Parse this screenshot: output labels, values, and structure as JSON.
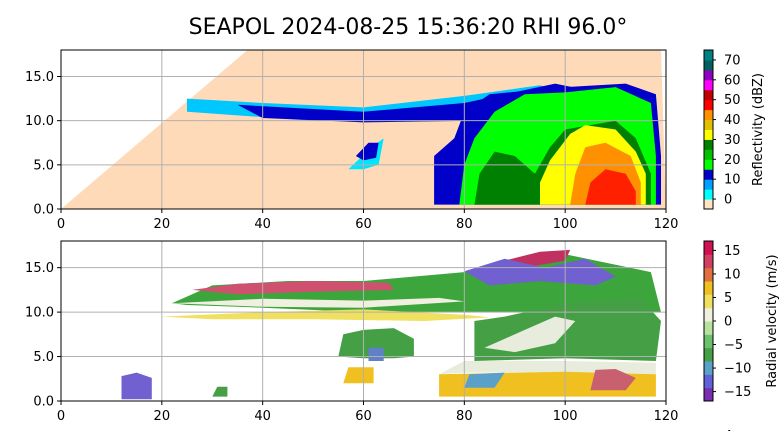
{
  "title": "SEAPOL 2024-08-25 15:36:20 RHI 96.0°",
  "chart_data": [
    {
      "type": "heatmap",
      "field": "reflectivity",
      "xlim": [
        0,
        120
      ],
      "ylim": [
        0,
        18
      ],
      "x_ticks": [
        "0",
        "20",
        "40",
        "60",
        "80",
        "100",
        "120"
      ],
      "y_ticks": [
        "0.0",
        "5.0",
        "10.0",
        "15.0"
      ],
      "grid": true,
      "colorbar": {
        "label": "Reflectivity (dBZ)",
        "range": [
          -5,
          75
        ],
        "ticks": [
          "0",
          "10",
          "20",
          "30",
          "40",
          "50",
          "60",
          "70"
        ],
        "colors": [
          "#ffe4c4",
          "#00ffff",
          "#00a0ff",
          "#0000c8",
          "#00ff00",
          "#00c000",
          "#008000",
          "#ffff00",
          "#e0c000",
          "#ff9000",
          "#ff0000",
          "#c00000",
          "#ff00ff",
          "#9000c0",
          "#006060",
          "#008080"
        ]
      },
      "regions": [
        {
          "name": "blocked-sector",
          "color": "#ffdab9",
          "poly": [
            [
              0,
              0
            ],
            [
              37,
              18
            ],
            [
              119,
              18
            ],
            [
              120,
              0
            ]
          ]
        },
        {
          "name": "anvil-stratiform",
          "color": "#00c8ff",
          "poly": [
            [
              25,
              12.5
            ],
            [
              40,
              12
            ],
            [
              60,
              11.5
            ],
            [
              80,
              12.8
            ],
            [
              95,
              14
            ],
            [
              100,
              13
            ],
            [
              90,
              11
            ],
            [
              70,
              10
            ],
            [
              50,
              10
            ],
            [
              35,
              10.6
            ],
            [
              25,
              11
            ]
          ]
        },
        {
          "name": "anvil-core",
          "color": "#0000c8",
          "poly": [
            [
              35,
              11.8
            ],
            [
              60,
              11
            ],
            [
              80,
              12
            ],
            [
              98,
              14.2
            ],
            [
              104,
              13.5
            ],
            [
              100,
              11
            ],
            [
              82,
              10
            ],
            [
              60,
              9.8
            ],
            [
              40,
              10.3
            ]
          ]
        },
        {
          "name": "isolated-cell",
          "color": "#00e5ff",
          "poly": [
            [
              57,
              4.5
            ],
            [
              62,
              7.2
            ],
            [
              64,
              8
            ],
            [
              63,
              5
            ],
            [
              60,
              4.5
            ]
          ]
        },
        {
          "name": "isolated-cell-core",
          "color": "#0000c8",
          "poly": [
            [
              58.5,
              6
            ],
            [
              61,
              7.5
            ],
            [
              63,
              7.5
            ],
            [
              62.5,
              5.8
            ],
            [
              60,
              5.5
            ]
          ]
        },
        {
          "name": "main-cell-outer",
          "color": "#0000c8",
          "poly": [
            [
              74,
              0.5
            ],
            [
              74,
              6
            ],
            [
              78,
              8
            ],
            [
              80,
              11
            ],
            [
              85,
              13
            ],
            [
              100,
              13.8
            ],
            [
              112,
              14.2
            ],
            [
              118,
              13
            ],
            [
              119,
              6
            ],
            [
              119,
              0.5
            ]
          ]
        },
        {
          "name": "main-cell-green",
          "color": "#00ff00",
          "poly": [
            [
              79,
              0.5
            ],
            [
              80,
              5
            ],
            [
              82,
              8
            ],
            [
              86,
              11
            ],
            [
              92,
              13
            ],
            [
              100,
              13.2
            ],
            [
              110,
              13.8
            ],
            [
              117,
              12
            ],
            [
              118,
              6
            ],
            [
              118,
              0.5
            ]
          ]
        },
        {
          "name": "main-cell-darkgreen",
          "color": "#008000",
          "poly": [
            [
              82,
              0.5
            ],
            [
              83,
              4
            ],
            [
              86,
              6.5
            ],
            [
              90,
              6
            ],
            [
              94,
              4
            ],
            [
              97,
              7
            ],
            [
              100,
              9
            ],
            [
              110,
              10
            ],
            [
              114,
              8
            ],
            [
              117,
              4
            ],
            [
              117,
              0.5
            ]
          ]
        },
        {
          "name": "main-cell-yellow",
          "color": "#ffff00",
          "poly": [
            [
              95,
              0.5
            ],
            [
              95,
              3
            ],
            [
              97,
              5.5
            ],
            [
              101,
              8.5
            ],
            [
              104,
              9.5
            ],
            [
              110,
              9
            ],
            [
              114,
              6.5
            ],
            [
              116,
              4
            ],
            [
              116,
              0.5
            ]
          ]
        },
        {
          "name": "main-cell-orange",
          "color": "#ff9000",
          "poly": [
            [
              101,
              0.5
            ],
            [
              102,
              4
            ],
            [
              104,
              7
            ],
            [
              108,
              7.5
            ],
            [
              113,
              6
            ],
            [
              115,
              3
            ],
            [
              115,
              0.5
            ]
          ]
        },
        {
          "name": "main-cell-red",
          "color": "#ff2000",
          "poly": [
            [
              104,
              0.5
            ],
            [
              105,
              3
            ],
            [
              108,
              4.5
            ],
            [
              112,
              4
            ],
            [
              114,
              2
            ],
            [
              114,
              0.5
            ]
          ]
        }
      ]
    },
    {
      "type": "heatmap",
      "field": "radial_velocity",
      "xlim": [
        0,
        120
      ],
      "ylim": [
        0,
        18
      ],
      "x_ticks": [
        "0",
        "20",
        "40",
        "60",
        "80",
        "100",
        "120"
      ],
      "y_ticks": [
        "0.0",
        "5.0",
        "10.0",
        "15.0"
      ],
      "grid": true,
      "colorbar": {
        "label": "Radial velocity (m/s)",
        "range": [
          -17,
          17
        ],
        "ticks": [
          "15",
          "10",
          "5",
          "0",
          "−5",
          "−10",
          "−15"
        ],
        "colors": [
          "#7a2db0",
          "#6060d8",
          "#5aa0c8",
          "#45a045",
          "#6cc06c",
          "#b8e0a0",
          "#f0f0e0",
          "#f0e060",
          "#f0c020",
          "#e07040",
          "#d04060",
          "#d01050"
        ],
        "overflow_tick": "4"
      },
      "regions": [
        {
          "name": "upper-layer-green",
          "color": "#3ca53c",
          "poly": [
            [
              22,
              11
            ],
            [
              30,
              13
            ],
            [
              45,
              13.5
            ],
            [
              60,
              13.5
            ],
            [
              80,
              14.5
            ],
            [
              100,
              16.5
            ],
            [
              117,
              14.5
            ],
            [
              119,
              10
            ],
            [
              100,
              10
            ],
            [
              80,
              10
            ],
            [
              60,
              10
            ],
            [
              40,
              10.5
            ],
            [
              25,
              10.8
            ]
          ]
        },
        {
          "name": "upper-layer-pink",
          "color": "#d05070",
          "poly": [
            [
              26,
              12.5
            ],
            [
              35,
              13.2
            ],
            [
              50,
              13.5
            ],
            [
              65,
              13.3
            ],
            [
              66,
              12.5
            ],
            [
              50,
              12.3
            ],
            [
              35,
              12
            ]
          ]
        },
        {
          "name": "upper-layer-pink-right",
          "color": "#c03060",
          "poly": [
            [
              88,
              15.8
            ],
            [
              95,
              16.8
            ],
            [
              101,
              17
            ],
            [
              100,
              15.8
            ],
            [
              94,
              15.2
            ]
          ]
        },
        {
          "name": "upper-layer-purple",
          "color": "#7060d0",
          "poly": [
            [
              80,
              14.6
            ],
            [
              88,
              16
            ],
            [
              96,
              15
            ],
            [
              104,
              16
            ],
            [
              110,
              14
            ],
            [
              106,
              13
            ],
            [
              95,
              13.5
            ],
            [
              85,
              13
            ]
          ]
        },
        {
          "name": "white-band",
          "color": "#f0f0e0",
          "poly": [
            [
              22,
              11
            ],
            [
              40,
              11.5
            ],
            [
              60,
              11.3
            ],
            [
              75,
              11.6
            ],
            [
              80,
              11.2
            ],
            [
              60,
              10.5
            ],
            [
              40,
              10.6
            ]
          ]
        },
        {
          "name": "yellow-band",
          "color": "#f0e060",
          "poly": [
            [
              20,
              9.5
            ],
            [
              40,
              10
            ],
            [
              60,
              10.3
            ],
            [
              80,
              9.7
            ],
            [
              85,
              9.4
            ],
            [
              72,
              9
            ],
            [
              50,
              9.2
            ],
            [
              30,
              9.2
            ]
          ]
        },
        {
          "name": "mid-green",
          "color": "#45a045",
          "poly": [
            [
              82,
              4.5
            ],
            [
              82,
              9
            ],
            [
              88,
              9.5
            ],
            [
              100,
              11
            ],
            [
              115,
              11.5
            ],
            [
              119,
              9
            ],
            [
              118,
              4.5
            ],
            [
              100,
              4.8
            ]
          ]
        },
        {
          "name": "mid-white",
          "color": "#e8ecdc",
          "poly": [
            [
              84,
              6
            ],
            [
              92,
              8
            ],
            [
              98,
              9.5
            ],
            [
              102,
              9
            ],
            [
              98,
              6.5
            ],
            [
              90,
              5.5
            ]
          ]
        },
        {
          "name": "low-white",
          "color": "#e8ecdc",
          "poly": [
            [
              75,
              3
            ],
            [
              80,
              4.5
            ],
            [
              100,
              4.5
            ],
            [
              118,
              4.3
            ],
            [
              118,
              3
            ],
            [
              100,
              3.2
            ],
            [
              80,
              3.2
            ]
          ]
        },
        {
          "name": "low-yellow",
          "color": "#f0c020",
          "poly": [
            [
              75,
              0.5
            ],
            [
              75,
              3
            ],
            [
              100,
              3.3
            ],
            [
              118,
              3
            ],
            [
              118,
              0.5
            ]
          ]
        },
        {
          "name": "low-pink",
          "color": "#c86070",
          "poly": [
            [
              105,
              1.2
            ],
            [
              106,
              3.5
            ],
            [
              110,
              3.6
            ],
            [
              114,
              2.6
            ],
            [
              112,
              1.2
            ]
          ]
        },
        {
          "name": "low-blue",
          "color": "#5aa0c8",
          "poly": [
            [
              80,
              1.5
            ],
            [
              81,
              3
            ],
            [
              88,
              3.2
            ],
            [
              86,
              1.5
            ]
          ]
        },
        {
          "name": "mid-cell-green",
          "color": "#45a045",
          "poly": [
            [
              55,
              5
            ],
            [
              56,
              7.5
            ],
            [
              60,
              8
            ],
            [
              66,
              8.2
            ],
            [
              70,
              7
            ],
            [
              70,
              5
            ],
            [
              66,
              4.8
            ],
            [
              60,
              4.8
            ]
          ]
        },
        {
          "name": "mid-cell-blue",
          "color": "#6080c8",
          "poly": [
            [
              61,
              4.5
            ],
            [
              61,
              6
            ],
            [
              64,
              6
            ],
            [
              64,
              4.5
            ]
          ]
        },
        {
          "name": "mid-cell-yellow",
          "color": "#f0c020",
          "poly": [
            [
              56,
              2
            ],
            [
              57,
              3.8
            ],
            [
              62,
              3.8
            ],
            [
              62,
              2
            ]
          ]
        },
        {
          "name": "left-purple-cell",
          "color": "#7060d0",
          "poly": [
            [
              12,
              0.2
            ],
            [
              12,
              2.8
            ],
            [
              15,
              3.2
            ],
            [
              18,
              2.6
            ],
            [
              18,
              0.2
            ]
          ]
        },
        {
          "name": "small-green-blip",
          "color": "#45a045",
          "poly": [
            [
              30,
              0.5
            ],
            [
              31,
              1.6
            ],
            [
              33,
              1.6
            ],
            [
              33,
              0.5
            ]
          ]
        }
      ]
    }
  ]
}
